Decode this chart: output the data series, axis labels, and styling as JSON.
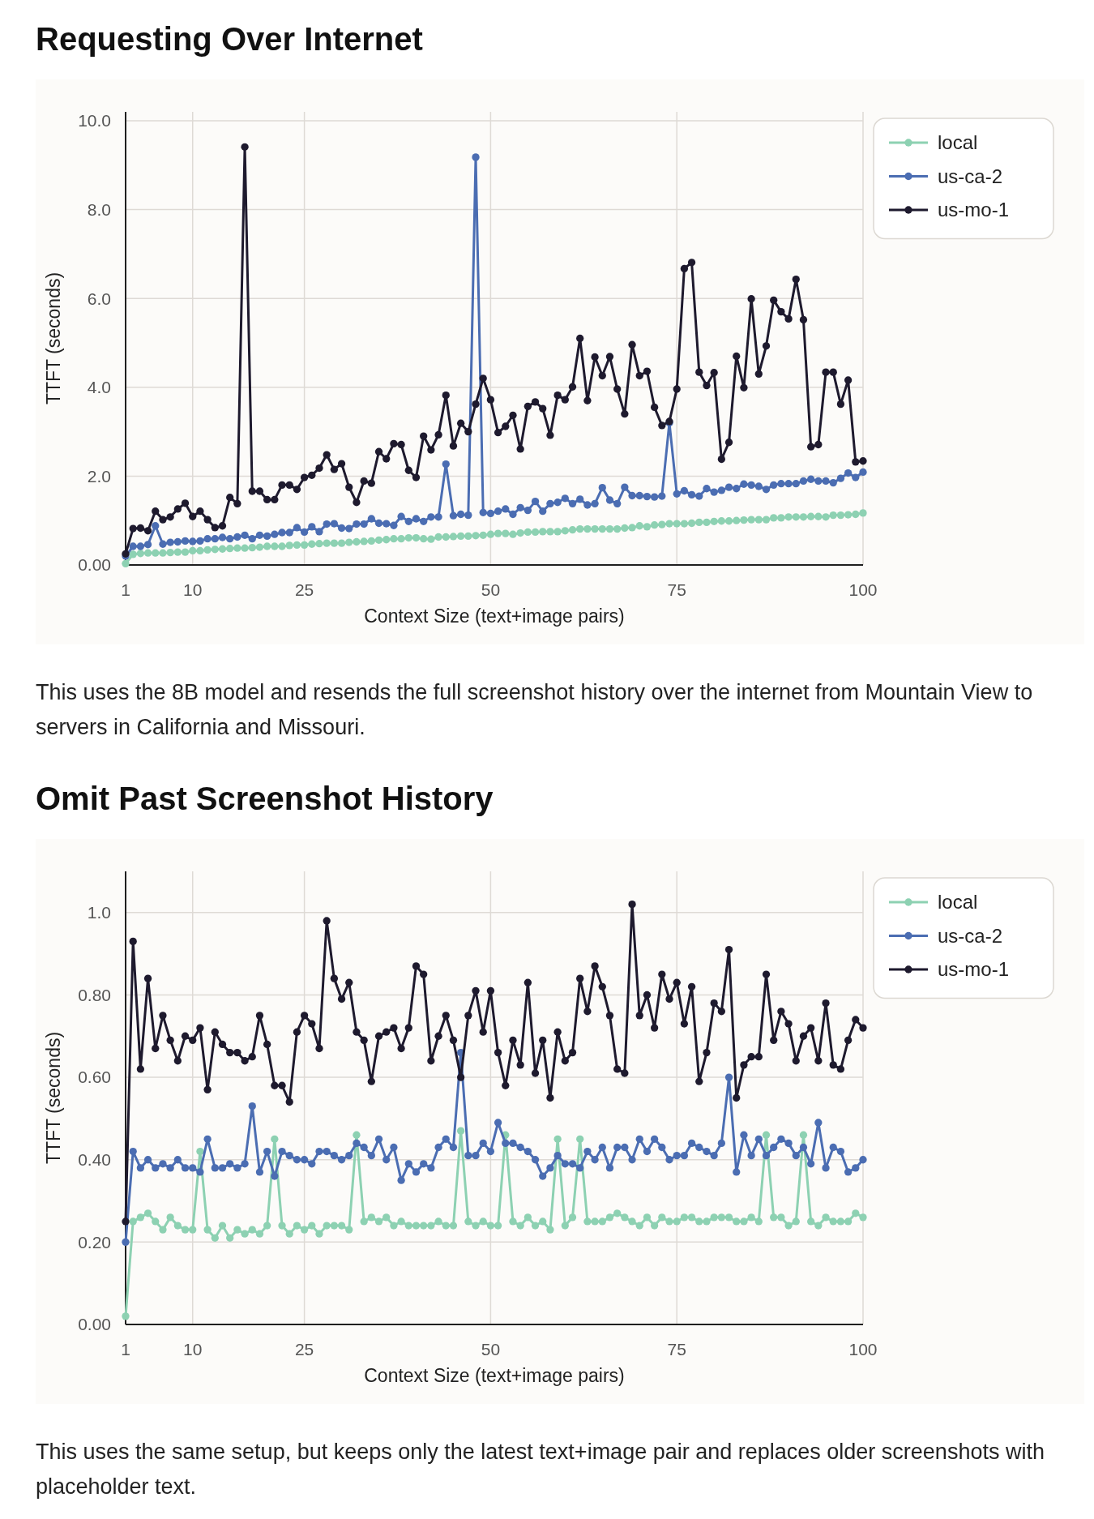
{
  "chart_data": [
    {
      "type": "line",
      "title": "Requesting Over Internet",
      "xlabel": "Context Size (text+image pairs)",
      "ylabel": "TTFT (seconds)",
      "annotations": [
        "This uses the 8B model and resends the full screenshot history over the internet from Mountain View to servers in California and Missouri."
      ],
      "x": [
        1,
        2,
        3,
        4,
        5,
        6,
        7,
        8,
        9,
        10,
        11,
        12,
        13,
        14,
        15,
        16,
        17,
        18,
        19,
        20,
        21,
        22,
        23,
        24,
        25,
        26,
        27,
        28,
        29,
        30,
        31,
        32,
        33,
        34,
        35,
        36,
        37,
        38,
        39,
        40,
        41,
        42,
        43,
        44,
        45,
        46,
        47,
        48,
        49,
        50,
        51,
        52,
        53,
        54,
        55,
        56,
        57,
        58,
        59,
        60,
        61,
        62,
        63,
        64,
        65,
        66,
        67,
        68,
        69,
        70,
        71,
        72,
        73,
        74,
        75,
        76,
        77,
        78,
        79,
        80,
        81,
        82,
        83,
        84,
        85,
        86,
        87,
        88,
        89,
        90,
        91,
        92,
        93,
        94,
        95,
        96,
        97,
        98,
        99,
        100
      ],
      "series": [
        {
          "name": "local",
          "color": "#8dd1b2",
          "values": [
            0.03,
            0.24,
            0.26,
            0.27,
            0.27,
            0.27,
            0.28,
            0.29,
            0.29,
            0.32,
            0.32,
            0.34,
            0.35,
            0.36,
            0.37,
            0.38,
            0.38,
            0.39,
            0.4,
            0.42,
            0.42,
            0.42,
            0.44,
            0.45,
            0.45,
            0.47,
            0.48,
            0.49,
            0.49,
            0.49,
            0.51,
            0.52,
            0.53,
            0.54,
            0.56,
            0.57,
            0.59,
            0.59,
            0.61,
            0.61,
            0.59,
            0.58,
            0.63,
            0.63,
            0.64,
            0.65,
            0.65,
            0.66,
            0.67,
            0.69,
            0.71,
            0.71,
            0.69,
            0.72,
            0.74,
            0.74,
            0.75,
            0.75,
            0.75,
            0.77,
            0.79,
            0.81,
            0.81,
            0.81,
            0.81,
            0.81,
            0.81,
            0.83,
            0.84,
            0.88,
            0.86,
            0.9,
            0.91,
            0.93,
            0.93,
            0.93,
            0.94,
            0.96,
            0.96,
            0.98,
            0.99,
            0.99,
            1.0,
            1.01,
            1.02,
            1.02,
            1.02,
            1.06,
            1.06,
            1.08,
            1.08,
            1.08,
            1.09,
            1.09,
            1.08,
            1.12,
            1.12,
            1.13,
            1.14,
            1.17
          ]
        },
        {
          "name": "us-ca-2",
          "color": "#4b6db2",
          "values": [
            0.2,
            0.42,
            0.42,
            0.46,
            0.88,
            0.47,
            0.51,
            0.52,
            0.54,
            0.53,
            0.54,
            0.59,
            0.59,
            0.62,
            0.59,
            0.63,
            0.67,
            0.59,
            0.67,
            0.65,
            0.69,
            0.73,
            0.73,
            0.84,
            0.74,
            0.86,
            0.75,
            0.92,
            0.93,
            0.83,
            0.82,
            0.92,
            0.92,
            1.04,
            0.94,
            0.93,
            0.89,
            1.09,
            0.98,
            1.04,
            0.98,
            1.08,
            1.08,
            2.27,
            1.11,
            1.14,
            1.12,
            9.18,
            1.18,
            1.16,
            1.21,
            1.26,
            1.14,
            1.29,
            1.23,
            1.43,
            1.21,
            1.38,
            1.41,
            1.5,
            1.38,
            1.48,
            1.35,
            1.38,
            1.74,
            1.46,
            1.38,
            1.75,
            1.56,
            1.56,
            1.54,
            1.53,
            1.55,
            3.2,
            1.6,
            1.67,
            1.58,
            1.55,
            1.72,
            1.64,
            1.68,
            1.75,
            1.72,
            1.82,
            1.8,
            1.77,
            1.7,
            1.8,
            1.83,
            1.83,
            1.83,
            1.89,
            1.93,
            1.89,
            1.89,
            1.85,
            1.95,
            2.07,
            1.97,
            2.09
          ]
        },
        {
          "name": "us-mo-1",
          "color": "#1e1a2e",
          "values": [
            0.25,
            0.82,
            0.83,
            0.77,
            1.21,
            1.02,
            1.08,
            1.26,
            1.39,
            1.09,
            1.21,
            1.02,
            0.84,
            0.88,
            1.52,
            1.38,
            9.41,
            1.66,
            1.66,
            1.47,
            1.47,
            1.8,
            1.8,
            1.7,
            1.97,
            2.02,
            2.18,
            2.48,
            2.15,
            2.28,
            1.75,
            1.41,
            1.89,
            1.84,
            2.55,
            2.39,
            2.73,
            2.71,
            2.13,
            1.97,
            2.9,
            2.59,
            2.93,
            3.82,
            2.68,
            3.19,
            3.0,
            3.62,
            4.2,
            3.72,
            2.98,
            3.12,
            3.37,
            2.61,
            3.57,
            3.67,
            3.52,
            2.92,
            3.82,
            3.72,
            4.01,
            5.1,
            3.7,
            4.68,
            4.26,
            4.69,
            3.96,
            3.4,
            4.96,
            4.26,
            4.36,
            3.55,
            3.14,
            3.23,
            3.96,
            6.67,
            6.81,
            4.34,
            4.04,
            4.33,
            2.38,
            2.76,
            4.7,
            3.99,
            5.99,
            4.3,
            4.93,
            5.96,
            5.7,
            5.54,
            6.43,
            5.52,
            2.66,
            2.71,
            4.34,
            4.34,
            3.62,
            4.16,
            2.32,
            2.34
          ]
        }
      ],
      "xlim": [
        1,
        100
      ],
      "xticks": [
        1,
        10,
        25,
        50,
        75,
        100
      ],
      "ylim": [
        0,
        10.2
      ],
      "yticks": [
        {
          "value": 0,
          "label": "0.00"
        },
        {
          "value": 2,
          "label": "2.0"
        },
        {
          "value": 4,
          "label": "4.0"
        },
        {
          "value": 6,
          "label": "6.0"
        },
        {
          "value": 8,
          "label": "8.0"
        },
        {
          "value": 10,
          "label": "10.0"
        }
      ],
      "grid": true,
      "legend": "top right",
      "marker": "circle",
      "line_style": "solid"
    },
    {
      "type": "line",
      "title": "Omit Past Screenshot History",
      "xlabel": "Context Size (text+image pairs)",
      "ylabel": "TTFT (seconds)",
      "annotations": [
        "This uses the same setup, but keeps only the latest text+image pair and replaces older screenshots with placeholder text."
      ],
      "x": [
        1,
        2,
        3,
        4,
        5,
        6,
        7,
        8,
        9,
        10,
        11,
        12,
        13,
        14,
        15,
        16,
        17,
        18,
        19,
        20,
        21,
        22,
        23,
        24,
        25,
        26,
        27,
        28,
        29,
        30,
        31,
        32,
        33,
        34,
        35,
        36,
        37,
        38,
        39,
        40,
        41,
        42,
        43,
        44,
        45,
        46,
        47,
        48,
        49,
        50,
        51,
        52,
        53,
        54,
        55,
        56,
        57,
        58,
        59,
        60,
        61,
        62,
        63,
        64,
        65,
        66,
        67,
        68,
        69,
        70,
        71,
        72,
        73,
        74,
        75,
        76,
        77,
        78,
        79,
        80,
        81,
        82,
        83,
        84,
        85,
        86,
        87,
        88,
        89,
        90,
        91,
        92,
        93,
        94,
        95,
        96,
        97,
        98,
        99,
        100
      ],
      "series": [
        {
          "name": "local",
          "color": "#8dd1b2",
          "values": [
            0.02,
            0.25,
            0.26,
            0.27,
            0.25,
            0.23,
            0.26,
            0.24,
            0.23,
            0.23,
            0.42,
            0.23,
            0.21,
            0.24,
            0.21,
            0.23,
            0.22,
            0.23,
            0.22,
            0.24,
            0.45,
            0.24,
            0.22,
            0.24,
            0.23,
            0.24,
            0.22,
            0.24,
            0.24,
            0.24,
            0.23,
            0.46,
            0.25,
            0.26,
            0.25,
            0.26,
            0.24,
            0.25,
            0.24,
            0.24,
            0.24,
            0.24,
            0.25,
            0.24,
            0.24,
            0.47,
            0.25,
            0.24,
            0.25,
            0.24,
            0.24,
            0.46,
            0.25,
            0.24,
            0.26,
            0.24,
            0.25,
            0.23,
            0.45,
            0.24,
            0.26,
            0.45,
            0.25,
            0.25,
            0.25,
            0.26,
            0.27,
            0.26,
            0.25,
            0.24,
            0.26,
            0.24,
            0.26,
            0.25,
            0.25,
            0.26,
            0.26,
            0.25,
            0.25,
            0.26,
            0.26,
            0.26,
            0.25,
            0.25,
            0.26,
            0.25,
            0.46,
            0.26,
            0.26,
            0.24,
            0.25,
            0.46,
            0.25,
            0.24,
            0.26,
            0.25,
            0.25,
            0.25,
            0.27,
            0.26
          ]
        },
        {
          "name": "us-ca-2",
          "color": "#4b6db2",
          "values": [
            0.2,
            0.42,
            0.38,
            0.4,
            0.38,
            0.39,
            0.38,
            0.4,
            0.38,
            0.38,
            0.37,
            0.45,
            0.38,
            0.38,
            0.39,
            0.38,
            0.39,
            0.53,
            0.37,
            0.42,
            0.36,
            0.42,
            0.41,
            0.4,
            0.4,
            0.39,
            0.42,
            0.42,
            0.41,
            0.4,
            0.41,
            0.44,
            0.43,
            0.41,
            0.45,
            0.4,
            0.43,
            0.35,
            0.39,
            0.37,
            0.39,
            0.38,
            0.43,
            0.45,
            0.43,
            0.66,
            0.41,
            0.41,
            0.44,
            0.42,
            0.49,
            0.44,
            0.44,
            0.43,
            0.42,
            0.4,
            0.36,
            0.38,
            0.41,
            0.39,
            0.39,
            0.38,
            0.42,
            0.4,
            0.43,
            0.38,
            0.43,
            0.43,
            0.4,
            0.45,
            0.42,
            0.45,
            0.43,
            0.4,
            0.41,
            0.41,
            0.44,
            0.43,
            0.42,
            0.41,
            0.44,
            0.6,
            0.37,
            0.46,
            0.41,
            0.45,
            0.41,
            0.43,
            0.45,
            0.44,
            0.41,
            0.43,
            0.39,
            0.49,
            0.38,
            0.43,
            0.42,
            0.37,
            0.38,
            0.4
          ]
        },
        {
          "name": "us-mo-1",
          "color": "#1e1a2e",
          "values": [
            0.25,
            0.93,
            0.62,
            0.84,
            0.67,
            0.75,
            0.69,
            0.64,
            0.7,
            0.69,
            0.72,
            0.57,
            0.71,
            0.68,
            0.66,
            0.66,
            0.64,
            0.65,
            0.75,
            0.68,
            0.58,
            0.58,
            0.54,
            0.71,
            0.75,
            0.73,
            0.67,
            0.98,
            0.84,
            0.79,
            0.83,
            0.71,
            0.69,
            0.59,
            0.7,
            0.71,
            0.72,
            0.67,
            0.72,
            0.87,
            0.85,
            0.64,
            0.7,
            0.75,
            0.69,
            0.6,
            0.75,
            0.81,
            0.71,
            0.81,
            0.66,
            0.58,
            0.69,
            0.63,
            0.83,
            0.61,
            0.69,
            0.55,
            0.71,
            0.64,
            0.66,
            0.84,
            0.76,
            0.87,
            0.82,
            0.75,
            0.62,
            0.61,
            1.02,
            0.75,
            0.8,
            0.72,
            0.85,
            0.79,
            0.83,
            0.73,
            0.82,
            0.59,
            0.66,
            0.78,
            0.76,
            0.91,
            0.55,
            0.63,
            0.65,
            0.65,
            0.85,
            0.69,
            0.76,
            0.73,
            0.64,
            0.7,
            0.72,
            0.64,
            0.78,
            0.63,
            0.62,
            0.69,
            0.74,
            0.72
          ]
        }
      ],
      "xlim": [
        1,
        100
      ],
      "xticks": [
        1,
        10,
        25,
        50,
        75,
        100
      ],
      "ylim": [
        0,
        1.1
      ],
      "yticks": [
        {
          "value": 0,
          "label": "0.00"
        },
        {
          "value": 0.2,
          "label": "0.20"
        },
        {
          "value": 0.4,
          "label": "0.40"
        },
        {
          "value": 0.6,
          "label": "0.60"
        },
        {
          "value": 0.8,
          "label": "0.80"
        },
        {
          "value": 1,
          "label": "1.0"
        }
      ],
      "grid": true,
      "legend": "top right",
      "marker": "circle",
      "line_style": "solid"
    }
  ]
}
